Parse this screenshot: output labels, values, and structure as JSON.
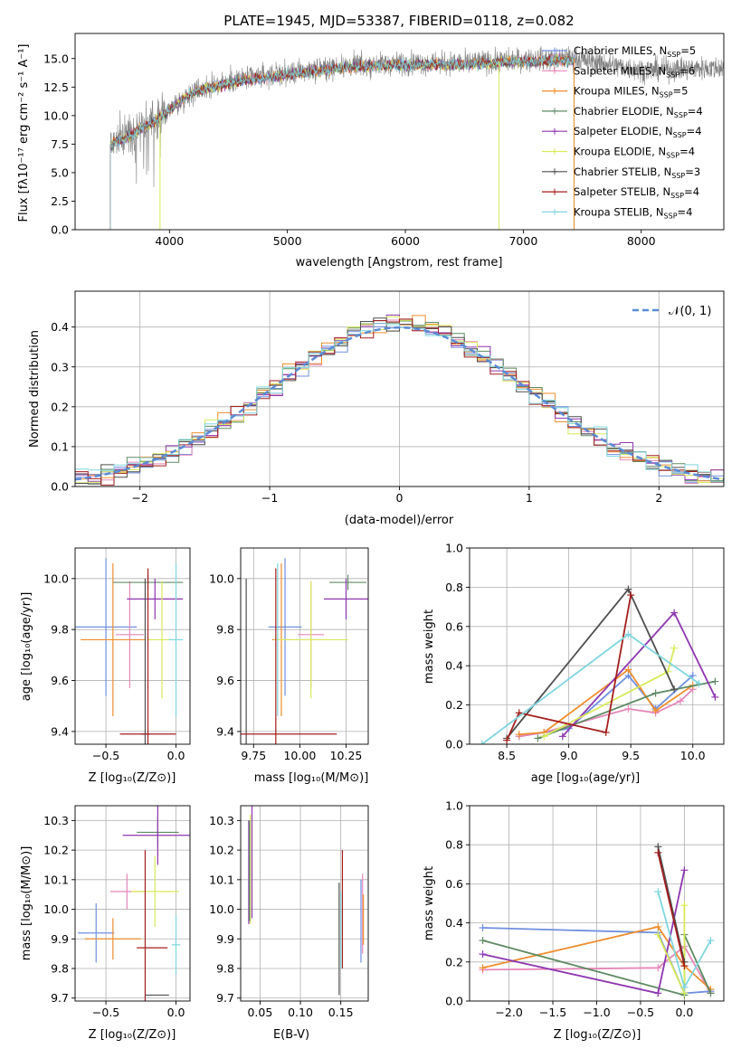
{
  "figure": {
    "title": "PLATE=1945, MJD=53387, FIBERID=0118, z=0.082"
  },
  "legend_models": [
    {
      "name": "Chabrier MILES",
      "n": "5",
      "color": "#6f8fe0"
    },
    {
      "name": "Salpeter MILES",
      "n": "6",
      "color": "#e687b8"
    },
    {
      "name": "Kroupa MILES",
      "n": "5",
      "color": "#ef8e2e"
    },
    {
      "name": "Chabrier ELODIE",
      "n": "4",
      "color": "#5e8a62"
    },
    {
      "name": "Salpeter ELODIE",
      "n": "4",
      "color": "#8e36b0"
    },
    {
      "name": "Kroupa ELODIE",
      "n": "4",
      "color": "#d8ea58"
    },
    {
      "name": "Chabrier STELIB",
      "n": "3",
      "color": "#4f4f4f"
    },
    {
      "name": "Salpeter STELIB",
      "n": "4",
      "color": "#a51e1e"
    },
    {
      "name": "Kroupa STELIB",
      "n": "4",
      "color": "#7fd6df"
    }
  ],
  "legend_prefix": "N",
  "legend_sub": "SSP",
  "chart_data": [
    {
      "id": "spectrum",
      "type": "line",
      "xlabel": "wavelength [Angstrom, rest frame]",
      "ylabel": "Flux [fλ10⁻¹⁷ erg cm⁻² s⁻¹ A⁻¹]",
      "xlim": [
        3200,
        8700
      ],
      "ylim": [
        0,
        17.2
      ],
      "xticks": [
        "4000",
        "5000",
        "6000",
        "7000",
        "8000"
      ],
      "yticks": [
        "0.0",
        "2.5",
        "5.0",
        "7.5",
        "10.0",
        "12.5",
        "15.0"
      ],
      "data_color": "#808080",
      "data_range": [
        3500,
        8700
      ],
      "model_range": [
        3500,
        7430
      ],
      "continuum": [
        [
          3500,
          7.5
        ],
        [
          3900,
          9.8
        ],
        [
          4200,
          12.2
        ],
        [
          4600,
          13.2
        ],
        [
          5000,
          13.7
        ],
        [
          5500,
          14.4
        ],
        [
          6000,
          14.6
        ],
        [
          6500,
          14.6
        ],
        [
          7000,
          14.9
        ],
        [
          7430,
          15.0
        ],
        [
          8000,
          14.0
        ],
        [
          8700,
          14.2
        ]
      ]
    },
    {
      "id": "residuals",
      "type": "histogram",
      "xlabel": "(data-model)/error",
      "ylabel": "Normed distribution",
      "xlim": [
        -2.5,
        2.5
      ],
      "ylim": [
        0,
        0.49
      ],
      "xticks": [
        "−2",
        "−1",
        "0",
        "1",
        "2"
      ],
      "yticks": [
        "0.0",
        "0.1",
        "0.2",
        "0.3",
        "0.4"
      ],
      "normal_label": "𝒩(0, 1)",
      "normal_color": "#5b8bd6",
      "bin_width": 0.1,
      "grid": true
    },
    {
      "id": "age_vs_Z",
      "type": "errorbar",
      "xlabel": "Z [log₁₀(Z/Z⊙)]",
      "ylabel": "age  [log₁₀(age/yr)]",
      "xlim": [
        -0.72,
        0.1
      ],
      "ylim": [
        9.35,
        10.12
      ],
      "xticks": [
        "−0.5",
        "0.0"
      ],
      "xtick_vals": [
        -0.5,
        0.0
      ],
      "yticks": [
        "9.4",
        "9.6",
        "9.8",
        "10.0"
      ],
      "ytick_vals": [
        9.4,
        9.6,
        9.8,
        10.0
      ],
      "points": [
        {
          "x": -0.5,
          "xerr": 0.22,
          "y": 9.81,
          "yerr": 0.27,
          "color": "#6f8fe0"
        },
        {
          "x": -0.33,
          "xerr": 0.1,
          "y": 9.78,
          "yerr": 0.21,
          "color": "#e687b8"
        },
        {
          "x": -0.45,
          "xerr": 0.23,
          "y": 9.76,
          "yerr": 0.3,
          "color": "#ef8e2e"
        },
        {
          "x": -0.2,
          "xerr": 0.25,
          "y": 9.985,
          "yerr": 0.03,
          "color": "#5e8a62"
        },
        {
          "x": -0.15,
          "xerr": 0.2,
          "y": 9.92,
          "yerr": 0.08,
          "color": "#8e36b0"
        },
        {
          "x": -0.1,
          "xerr": 0.1,
          "y": 9.76,
          "yerr": 0.23,
          "color": "#d8ea58"
        },
        {
          "x": -0.22,
          "xerr": 0.03,
          "y": 9.39,
          "yerr": 0.61,
          "color": "#4f4f4f"
        },
        {
          "x": -0.2,
          "xerr": 0.2,
          "y": 9.39,
          "yerr": 0.65,
          "color": "#a51e1e"
        },
        {
          "x": 0.0,
          "xerr": 0.05,
          "y": 9.76,
          "yerr": 0.3,
          "color": "#7fd6df"
        }
      ]
    },
    {
      "id": "age_vs_mass",
      "type": "errorbar",
      "xlabel": "mass [log₁₀(M/M⊙)]",
      "ylabel": "",
      "xlim": [
        9.68,
        10.37
      ],
      "ylim": [
        9.35,
        10.12
      ],
      "xticks": [
        "9.75",
        "10.00",
        "10.25"
      ],
      "xtick_vals": [
        9.75,
        10.0,
        10.25
      ],
      "yticks": [
        "9.4",
        "9.6",
        "9.8",
        "10.0"
      ],
      "ytick_vals": [
        9.4,
        9.6,
        9.8,
        10.0
      ],
      "points": [
        {
          "x": 9.92,
          "xerr": 0.09,
          "y": 9.81,
          "yerr": 0.27,
          "color": "#6f8fe0"
        },
        {
          "x": 10.06,
          "xerr": 0.07,
          "y": 9.78,
          "yerr": 0.21,
          "color": "#e687b8"
        },
        {
          "x": 9.9,
          "xerr": 0.05,
          "y": 9.76,
          "yerr": 0.3,
          "color": "#ef8e2e"
        },
        {
          "x": 10.26,
          "xerr": 0.1,
          "y": 9.985,
          "yerr": 0.03,
          "color": "#5e8a62"
        },
        {
          "x": 10.25,
          "xerr": 0.12,
          "y": 9.92,
          "yerr": 0.08,
          "color": "#8e36b0"
        },
        {
          "x": 10.06,
          "xerr": 0.2,
          "y": 9.76,
          "yerr": 0.23,
          "color": "#d8ea58"
        },
        {
          "x": 9.71,
          "xerr": 0.0,
          "y": 9.39,
          "yerr": 0.61,
          "color": "#4f4f4f"
        },
        {
          "x": 9.87,
          "xerr": 0.33,
          "y": 9.39,
          "yerr": 0.65,
          "color": "#a51e1e"
        },
        {
          "x": 9.88,
          "xerr": 0.0,
          "y": 9.76,
          "yerr": 0.3,
          "color": "#7fd6df"
        }
      ]
    },
    {
      "id": "massweight_vs_age",
      "type": "line",
      "xlabel": "age  [log₁₀(age/yr)]",
      "ylabel": "mass weight",
      "xlim": [
        8.2,
        10.25
      ],
      "ylim": [
        0,
        1.0
      ],
      "xticks": [
        "8.5",
        "9.0",
        "9.5",
        "10.0"
      ],
      "xtick_vals": [
        8.5,
        9.0,
        9.5,
        10.0
      ],
      "yticks": [
        "0.0",
        "0.2",
        "0.4",
        "0.6",
        "0.8",
        "1.0"
      ],
      "ytick_vals": [
        0,
        0.2,
        0.4,
        0.6,
        0.8,
        1.0
      ],
      "grid": true,
      "series": [
        {
          "color": "#6f8fe0",
          "x": [
            8.6,
            9.0,
            9.48,
            9.7,
            10.0
          ],
          "y": [
            0.04,
            0.08,
            0.35,
            0.18,
            0.35
          ]
        },
        {
          "color": "#e687b8",
          "x": [
            8.6,
            8.8,
            9.48,
            9.7,
            9.9,
            10.0
          ],
          "y": [
            0.04,
            0.06,
            0.18,
            0.16,
            0.22,
            0.28
          ]
        },
        {
          "color": "#ef8e2e",
          "x": [
            8.6,
            8.8,
            9.48,
            9.7,
            10.0
          ],
          "y": [
            0.05,
            0.06,
            0.38,
            0.17,
            0.3
          ]
        },
        {
          "color": "#5e8a62",
          "x": [
            8.75,
            9.7,
            10.18
          ],
          "y": [
            0.03,
            0.26,
            0.32
          ]
        },
        {
          "color": "#8e36b0",
          "x": [
            8.95,
            9.85,
            10.18
          ],
          "y": [
            0.04,
            0.67,
            0.24
          ]
        },
        {
          "color": "#d8ea58",
          "x": [
            8.8,
            9.8,
            9.85
          ],
          "y": [
            0.04,
            0.37,
            0.49
          ]
        },
        {
          "color": "#4f4f4f",
          "x": [
            8.5,
            9.48,
            9.85
          ],
          "y": [
            0.03,
            0.79,
            0.28
          ]
        },
        {
          "color": "#a51e1e",
          "x": [
            8.5,
            8.6,
            9.3,
            9.5
          ],
          "y": [
            0.02,
            0.16,
            0.06,
            0.76
          ]
        },
        {
          "color": "#7fd6df",
          "x": [
            8.3,
            9.48,
            10.05
          ],
          "y": [
            0.0,
            0.56,
            0.31
          ]
        }
      ]
    },
    {
      "id": "mass_vs_Z",
      "type": "errorbar",
      "xlabel": "Z [log₁₀(Z/Z⊙)]",
      "ylabel": "mass [log₁₀(M/M⊙)]",
      "xlim": [
        -0.72,
        0.1
      ],
      "ylim": [
        9.69,
        10.35
      ],
      "xticks": [
        "−0.5",
        "0.0"
      ],
      "xtick_vals": [
        -0.5,
        0.0
      ],
      "yticks": [
        "9.7",
        "9.8",
        "9.9",
        "10.0",
        "10.1",
        "10.2",
        "10.3"
      ],
      "ytick_vals": [
        9.7,
        9.8,
        9.9,
        10.0,
        10.1,
        10.2,
        10.3
      ],
      "points": [
        {
          "x": -0.57,
          "xerr": 0.13,
          "y": 9.92,
          "yerr": 0.1,
          "color": "#6f8fe0"
        },
        {
          "x": -0.35,
          "xerr": 0.12,
          "y": 10.06,
          "yerr": 0.06,
          "color": "#e687b8"
        },
        {
          "x": -0.45,
          "xerr": 0.2,
          "y": 9.9,
          "yerr": 0.07,
          "color": "#ef8e2e"
        },
        {
          "x": -0.13,
          "xerr": 0.15,
          "y": 10.26,
          "yerr": 0.05,
          "color": "#5e8a62"
        },
        {
          "x": -0.13,
          "xerr": 0.25,
          "y": 10.25,
          "yerr": 0.1,
          "color": "#8e36b0"
        },
        {
          "x": -0.15,
          "xerr": 0.17,
          "y": 10.06,
          "yerr": 0.12,
          "color": "#d8ea58"
        },
        {
          "x": -0.22,
          "xerr": 0.0,
          "y": 9.71,
          "yerr": 0.0,
          "color": "#4f4f4f"
        },
        {
          "x": -0.22,
          "xerr": 0.0,
          "y": 9.87,
          "yerr": 0.33,
          "color": "#a51e1e"
        },
        {
          "x": 0.0,
          "xerr": 0.03,
          "y": 9.88,
          "yerr": 0.1,
          "color": "#7fd6df"
        }
      ],
      "hlines": [
        {
          "x0": -0.22,
          "x1": -0.05,
          "y": 9.71,
          "color": "#4f4f4f"
        },
        {
          "x0": -0.28,
          "x1": -0.06,
          "y": 9.87,
          "color": "#a51e1e"
        }
      ]
    },
    {
      "id": "mass_vs_EBV",
      "type": "errorbar",
      "xlabel": "E(B-V)",
      "ylabel": "",
      "xlim": [
        0.026,
        0.184
      ],
      "ylim": [
        9.69,
        10.35
      ],
      "xticks": [
        "0.05",
        "0.10",
        "0.15"
      ],
      "xtick_vals": [
        0.05,
        0.1,
        0.15
      ],
      "yticks": [
        "9.7",
        "9.8",
        "9.9",
        "10.0",
        "10.1",
        "10.2",
        "10.3"
      ],
      "ytick_vals": [
        9.7,
        9.8,
        9.9,
        10.0,
        10.1,
        10.2,
        10.3
      ],
      "vbars": [
        {
          "x": 0.036,
          "y0": 9.95,
          "y1": 10.3,
          "color": "#8e36b0"
        },
        {
          "x": 0.038,
          "y0": 9.95,
          "y1": 10.32,
          "color": "#d8ea58"
        },
        {
          "x": 0.04,
          "y0": 9.97,
          "y1": 10.35,
          "color": "#8e36b0"
        },
        {
          "x": 0.037,
          "y0": 9.96,
          "y1": 10.3,
          "color": "#5e8a62"
        },
        {
          "x": 0.148,
          "y0": 9.71,
          "y1": 10.09,
          "color": "#4f4f4f"
        },
        {
          "x": 0.15,
          "y0": 9.8,
          "y1": 10.06,
          "color": "#7fd6df"
        },
        {
          "x": 0.152,
          "y0": 9.8,
          "y1": 10.2,
          "color": "#a51e1e"
        },
        {
          "x": 0.175,
          "y0": 9.82,
          "y1": 10.1,
          "color": "#6f8fe0"
        },
        {
          "x": 0.177,
          "y0": 9.85,
          "y1": 10.12,
          "color": "#e687b8"
        },
        {
          "x": 0.178,
          "y0": 9.88,
          "y1": 10.05,
          "color": "#ef8e2e"
        }
      ]
    },
    {
      "id": "massweight_vs_Z",
      "type": "line",
      "xlabel": "Z [log₁₀(Z/Z⊙)]",
      "ylabel": "mass weight",
      "xlim": [
        -2.45,
        0.45
      ],
      "ylim": [
        0,
        1.0
      ],
      "xticks": [
        "−2.0",
        "−1.5",
        "−1.0",
        "−0.5",
        "0.0"
      ],
      "xtick_vals": [
        -2.0,
        -1.5,
        -1.0,
        -0.5,
        0.0
      ],
      "yticks": [
        "0.0",
        "0.2",
        "0.4",
        "0.6",
        "0.8",
        "1.0"
      ],
      "ytick_vals": [
        0,
        0.2,
        0.4,
        0.6,
        0.8,
        1.0
      ],
      "grid": true,
      "series": [
        {
          "color": "#6f8fe0",
          "x": [
            -2.3,
            -0.3,
            0.0,
            0.3
          ],
          "y": [
            0.375,
            0.35,
            0.04,
            0.05
          ]
        },
        {
          "color": "#e687b8",
          "x": [
            -2.3,
            -0.3,
            0.0,
            0.3
          ],
          "y": [
            0.16,
            0.17,
            0.28,
            0.04
          ]
        },
        {
          "color": "#ef8e2e",
          "x": [
            -2.3,
            -0.3,
            0.0,
            0.3
          ],
          "y": [
            0.17,
            0.38,
            0.18,
            0.06
          ]
        },
        {
          "color": "#5e8a62",
          "x": [
            -2.3,
            0.0,
            0.0,
            0.3
          ],
          "y": [
            0.31,
            0.03,
            0.34,
            0.04
          ]
        },
        {
          "color": "#8e36b0",
          "x": [
            -2.3,
            -0.3,
            0.0
          ],
          "y": [
            0.24,
            0.04,
            0.67
          ]
        },
        {
          "color": "#d8ea58",
          "x": [
            -0.3,
            0.0,
            0.0
          ],
          "y": [
            0.34,
            0.04,
            0.49
          ]
        },
        {
          "color": "#4f4f4f",
          "x": [
            -0.3,
            0.0
          ],
          "y": [
            0.79,
            0.2
          ]
        },
        {
          "color": "#a51e1e",
          "x": [
            -0.3,
            0.0
          ],
          "y": [
            0.76,
            0.18
          ]
        },
        {
          "color": "#7fd6df",
          "x": [
            -0.3,
            0.0,
            0.3
          ],
          "y": [
            0.56,
            0.07,
            0.31
          ]
        }
      ]
    }
  ]
}
